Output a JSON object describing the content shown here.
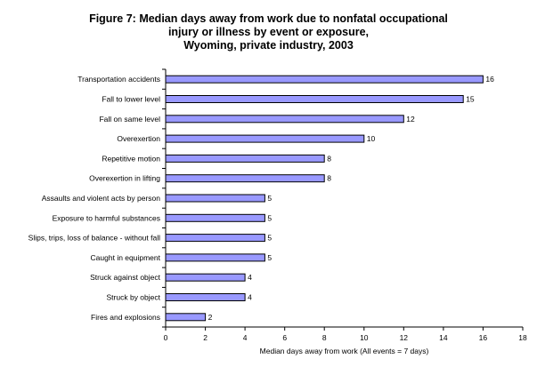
{
  "chart_data": {
    "type": "bar",
    "orientation": "horizontal",
    "title_lines": [
      "Figure 7: Median days away from work due to nonfatal occupational",
      "injury or illness by event or exposure,",
      "Wyoming, private industry, 2003"
    ],
    "xlabel": "Median days away from work (All events = 7 days)",
    "ylabel": "",
    "categories": [
      "Transportation accidents",
      "Fall to lower level",
      "Fall on same level",
      "Overexertion",
      "Repetitive motion",
      "Overexertion in lifting",
      "Assaults and violent acts by person",
      "Exposure to harmful substances",
      "Slips, trips, loss of balance - without fall",
      "Caught in equipment",
      "Struck against object",
      "Struck by object",
      "Fires and explosions"
    ],
    "values": [
      16,
      15,
      12,
      10,
      8,
      8,
      5,
      5,
      5,
      5,
      4,
      4,
      2
    ],
    "xlim": [
      0,
      18
    ],
    "xticks": [
      0,
      2,
      4,
      6,
      8,
      10,
      12,
      14,
      16,
      18
    ],
    "grid": false,
    "legend": "none",
    "bar_color": "#9999FF",
    "bar_edge_color": "#000000"
  }
}
